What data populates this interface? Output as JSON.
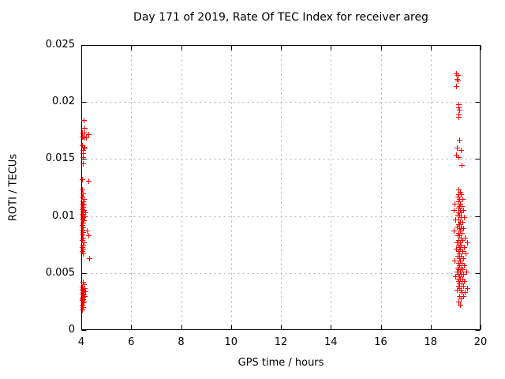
{
  "window": {
    "title": "Day 171 of 2019, Rate Of TEC Index for receiver areg"
  },
  "chart_data": {
    "type": "scatter",
    "title": "Day 171 of 2019, Rate Of TEC Index for receiver areg",
    "xlabel": "GPS time / hours",
    "ylabel": "ROTI / TECUs",
    "xlim": [
      4,
      20
    ],
    "ylim": [
      0,
      0.025
    ],
    "x_ticks": [
      4,
      6,
      8,
      10,
      12,
      14,
      16,
      18,
      20
    ],
    "x_tick_labels": [
      "4",
      "6",
      "8",
      "10",
      "12",
      "14",
      "16",
      "18",
      "20"
    ],
    "y_ticks": [
      0,
      0.005,
      0.01,
      0.015,
      0.02,
      0.025
    ],
    "y_tick_labels": [
      "0",
      "0.005",
      "0.01",
      "0.015",
      "0.02",
      "0.025"
    ],
    "grid": true,
    "grid_color": "#b0b0b0",
    "axis_color": "#000000",
    "legend": "none",
    "marker": "plus",
    "marker_color": "#ff0000",
    "series": [
      {
        "name": "ROTI",
        "points": [
          [
            4.09,
            0.0184
          ],
          [
            4.13,
            0.0177
          ],
          [
            4.02,
            0.0173
          ],
          [
            4.13,
            0.0173
          ],
          [
            4.3,
            0.0172
          ],
          [
            4.02,
            0.017
          ],
          [
            4.06,
            0.017
          ],
          [
            4.13,
            0.0169
          ],
          [
            4.19,
            0.0169
          ],
          [
            4.02,
            0.0162
          ],
          [
            4.09,
            0.0161
          ],
          [
            4.13,
            0.016
          ],
          [
            4.06,
            0.0158
          ],
          [
            4.06,
            0.0155
          ],
          [
            4.05,
            0.0152
          ],
          [
            4.06,
            0.0146
          ],
          [
            4.02,
            0.0132
          ],
          [
            4.27,
            0.0131
          ],
          [
            4.03,
            0.0123
          ],
          [
            4.07,
            0.012
          ],
          [
            4.03,
            0.0117
          ],
          [
            4.09,
            0.0115
          ],
          [
            4.05,
            0.0113
          ],
          [
            4.03,
            0.0111
          ],
          [
            4.08,
            0.011
          ],
          [
            4.05,
            0.0108
          ],
          [
            4.03,
            0.0106
          ],
          [
            4.1,
            0.0105
          ],
          [
            4.05,
            0.0104
          ],
          [
            4.16,
            0.0103
          ],
          [
            4.03,
            0.0102
          ],
          [
            4.07,
            0.0101
          ],
          [
            4.12,
            0.01
          ],
          [
            4.05,
            0.0099
          ],
          [
            4.03,
            0.0097
          ],
          [
            4.08,
            0.0096
          ],
          [
            4.05,
            0.0094
          ],
          [
            4.03,
            0.0092
          ],
          [
            4.07,
            0.009
          ],
          [
            4.04,
            0.0088
          ],
          [
            4.22,
            0.0087
          ],
          [
            4.05,
            0.0086
          ],
          [
            4.03,
            0.0084
          ],
          [
            4.28,
            0.0083
          ],
          [
            4.06,
            0.0081
          ],
          [
            4.04,
            0.0079
          ],
          [
            4.09,
            0.0077
          ],
          [
            4.05,
            0.0075
          ],
          [
            4.03,
            0.0073
          ],
          [
            4.07,
            0.0071
          ],
          [
            4.04,
            0.0069
          ],
          [
            4.06,
            0.0067
          ],
          [
            4.32,
            0.0063
          ],
          [
            4.06,
            0.0042
          ],
          [
            4.1,
            0.004
          ],
          [
            4.04,
            0.0038
          ],
          [
            4.12,
            0.0037
          ],
          [
            4.06,
            0.0036
          ],
          [
            4.03,
            0.0035
          ],
          [
            4.09,
            0.0034
          ],
          [
            4.15,
            0.0034
          ],
          [
            4.05,
            0.0033
          ],
          [
            4.03,
            0.0032
          ],
          [
            4.08,
            0.0031
          ],
          [
            4.12,
            0.003
          ],
          [
            4.05,
            0.0029
          ],
          [
            4.03,
            0.0028
          ],
          [
            4.07,
            0.0027
          ],
          [
            4.04,
            0.0026
          ],
          [
            4.1,
            0.0025
          ],
          [
            4.05,
            0.0024
          ],
          [
            4.03,
            0.0022
          ],
          [
            4.06,
            0.002
          ],
          [
            4.04,
            0.0018
          ],
          [
            19.02,
            0.0225
          ],
          [
            19.08,
            0.0224
          ],
          [
            19.04,
            0.022
          ],
          [
            19.07,
            0.0219
          ],
          [
            19.03,
            0.0214
          ],
          [
            19.12,
            0.0198
          ],
          [
            19.13,
            0.0195
          ],
          [
            19.14,
            0.0193
          ],
          [
            19.12,
            0.0189
          ],
          [
            19.11,
            0.0187
          ],
          [
            19.15,
            0.0167
          ],
          [
            19.05,
            0.016
          ],
          [
            19.2,
            0.0158
          ],
          [
            19.02,
            0.0154
          ],
          [
            19.1,
            0.0152
          ],
          [
            19.25,
            0.0145
          ],
          [
            19.1,
            0.0123
          ],
          [
            19.18,
            0.0121
          ],
          [
            19.13,
            0.0119
          ],
          [
            19.22,
            0.0119
          ],
          [
            19.08,
            0.0117
          ],
          [
            19.15,
            0.0115
          ],
          [
            19.28,
            0.0115
          ],
          [
            19.11,
            0.0113
          ],
          [
            19.19,
            0.0111
          ],
          [
            18.95,
            0.0111
          ],
          [
            19.14,
            0.0109
          ],
          [
            19.24,
            0.0109
          ],
          [
            19.1,
            0.0107
          ],
          [
            19.17,
            0.0105
          ],
          [
            19.3,
            0.0105
          ],
          [
            18.92,
            0.0105
          ],
          [
            19.12,
            0.0103
          ],
          [
            19.22,
            0.0103
          ],
          [
            19.08,
            0.0101
          ],
          [
            19.16,
            0.0101
          ],
          [
            19.2,
            0.0099
          ],
          [
            19.35,
            0.0099
          ],
          [
            19.13,
            0.0097
          ],
          [
            18.98,
            0.0097
          ],
          [
            19.18,
            0.0095
          ],
          [
            19.26,
            0.0095
          ],
          [
            19.1,
            0.0093
          ],
          [
            19.15,
            0.0093
          ],
          [
            19.22,
            0.0091
          ],
          [
            19.05,
            0.0091
          ],
          [
            19.14,
            0.0089
          ],
          [
            19.31,
            0.0089
          ],
          [
            19.18,
            0.0087
          ],
          [
            18.94,
            0.0087
          ],
          [
            19.12,
            0.0085
          ],
          [
            19.25,
            0.0085
          ],
          [
            19.16,
            0.0083
          ],
          [
            19.08,
            0.0083
          ],
          [
            19.21,
            0.0081
          ],
          [
            19.38,
            0.0081
          ],
          [
            19.13,
            0.0079
          ],
          [
            19.27,
            0.0079
          ],
          [
            19.17,
            0.0077
          ],
          [
            19.05,
            0.0077
          ],
          [
            19.45,
            0.0077
          ],
          [
            19.1,
            0.0075
          ],
          [
            19.22,
            0.0075
          ],
          [
            19.15,
            0.0073
          ],
          [
            19.33,
            0.0073
          ],
          [
            19.19,
            0.0071
          ],
          [
            19.02,
            0.0071
          ],
          [
            19.12,
            0.0069
          ],
          [
            19.26,
            0.0069
          ],
          [
            19.16,
            0.0067
          ],
          [
            19.4,
            0.0067
          ],
          [
            19.09,
            0.0065
          ],
          [
            19.21,
            0.0065
          ],
          [
            19.14,
            0.0063
          ],
          [
            19.3,
            0.0063
          ],
          [
            19.18,
            0.0061
          ],
          [
            18.96,
            0.0061
          ],
          [
            19.11,
            0.0059
          ],
          [
            19.24,
            0.0059
          ],
          [
            19.16,
            0.0057
          ],
          [
            19.35,
            0.0057
          ],
          [
            19.08,
            0.0055
          ],
          [
            19.2,
            0.0055
          ],
          [
            19.13,
            0.0053
          ],
          [
            19.28,
            0.0053
          ],
          [
            19.17,
            0.0051
          ],
          [
            19.05,
            0.0051
          ],
          [
            19.42,
            0.0051
          ],
          [
            19.1,
            0.0049
          ],
          [
            19.22,
            0.0049
          ],
          [
            19.31,
            0.0049
          ],
          [
            19.15,
            0.0047
          ],
          [
            18.98,
            0.0047
          ],
          [
            19.19,
            0.0045
          ],
          [
            19.26,
            0.0045
          ],
          [
            19.08,
            0.0045
          ],
          [
            19.12,
            0.0043
          ],
          [
            19.35,
            0.0043
          ],
          [
            19.16,
            0.0041
          ],
          [
            19.23,
            0.0041
          ],
          [
            19.1,
            0.0039
          ],
          [
            19.29,
            0.0039
          ],
          [
            19.14,
            0.0037
          ],
          [
            19.46,
            0.0037
          ],
          [
            19.2,
            0.0035
          ],
          [
            19.06,
            0.0035
          ],
          [
            19.25,
            0.0033
          ],
          [
            19.38,
            0.0033
          ],
          [
            19.16,
            0.003
          ],
          [
            19.3,
            0.003
          ],
          [
            19.22,
            0.0028
          ],
          [
            19.13,
            0.0025
          ],
          [
            19.18,
            0.0022
          ]
        ]
      }
    ]
  }
}
